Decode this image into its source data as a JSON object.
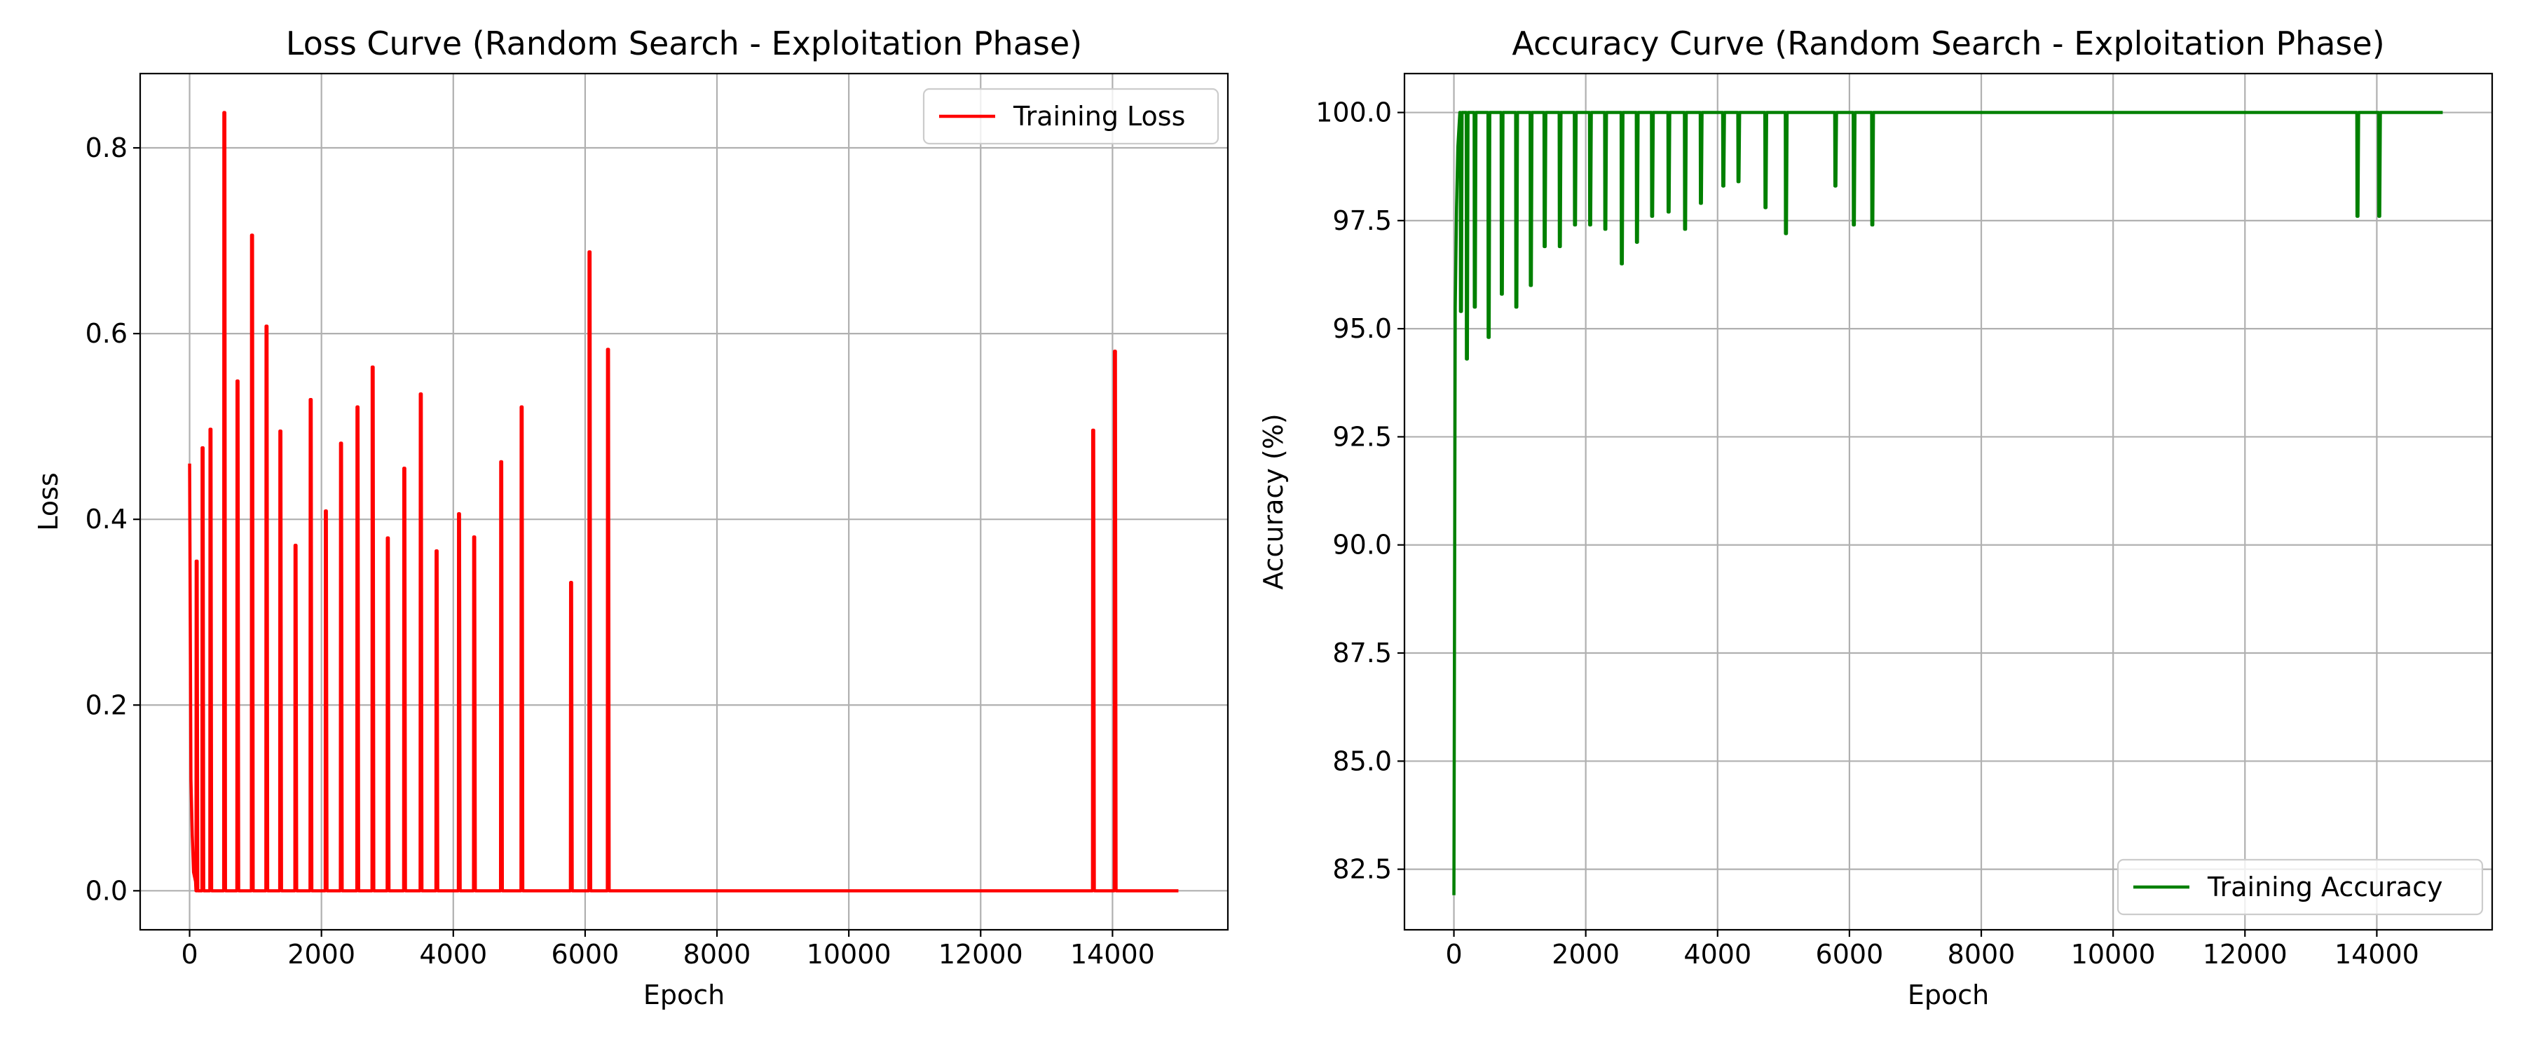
{
  "chart_data": [
    {
      "type": "line",
      "title": "Loss Curve (Random Search - Exploitation Phase)",
      "xlabel": "Epoch",
      "ylabel": "Loss",
      "xlim": [
        -750,
        15750
      ],
      "ylim": [
        -0.042,
        0.88
      ],
      "xticks": [
        0,
        2000,
        4000,
        6000,
        8000,
        10000,
        12000,
        14000
      ],
      "yticks": [
        0.0,
        0.2,
        0.4,
        0.6,
        0.8
      ],
      "yticks_decimals": 1,
      "grid": true,
      "legend_position": "upper right",
      "series": [
        {
          "name": "Training Loss",
          "color": "#ff0000",
          "baseline": 0.0,
          "x_end": 15000,
          "initial": [
            [
              0,
              0.46
            ],
            [
              20,
              0.12
            ],
            [
              40,
              0.06
            ],
            [
              60,
              0.02
            ],
            [
              90,
              0.01
            ],
            [
              110,
              0.0
            ]
          ],
          "spikes": [
            [
              100,
              0.355
            ],
            [
              190,
              0.477
            ],
            [
              310,
              0.497
            ],
            [
              520,
              0.838
            ],
            [
              720,
              0.549
            ],
            [
              940,
              0.706
            ],
            [
              1160,
              0.608
            ],
            [
              1370,
              0.495
            ],
            [
              1600,
              0.372
            ],
            [
              1830,
              0.529
            ],
            [
              2060,
              0.409
            ],
            [
              2290,
              0.482
            ],
            [
              2540,
              0.521
            ],
            [
              2770,
              0.564
            ],
            [
              3000,
              0.38
            ],
            [
              3250,
              0.455
            ],
            [
              3500,
              0.535
            ],
            [
              3740,
              0.366
            ],
            [
              4080,
              0.406
            ],
            [
              4310,
              0.381
            ],
            [
              4720,
              0.462
            ],
            [
              5030,
              0.521
            ],
            [
              5780,
              0.332
            ],
            [
              6060,
              0.688
            ],
            [
              6340,
              0.583
            ],
            [
              13700,
              0.496
            ],
            [
              14030,
              0.581
            ]
          ]
        }
      ]
    },
    {
      "type": "line",
      "title": "Accuracy Curve (Random Search - Exploitation Phase)",
      "xlabel": "Epoch",
      "ylabel": "Accuracy (%)",
      "xlim": [
        -750,
        15750
      ],
      "ylim": [
        81.1,
        100.9
      ],
      "xticks": [
        0,
        2000,
        4000,
        6000,
        8000,
        10000,
        12000,
        14000
      ],
      "yticks": [
        82.5,
        85.0,
        87.5,
        90.0,
        92.5,
        95.0,
        97.5,
        100.0
      ],
      "yticks_decimals": 1,
      "grid": true,
      "legend_position": "lower right",
      "series": [
        {
          "name": "Training Accuracy",
          "color": "#008000",
          "baseline": 100.0,
          "x_end": 15000,
          "initial": [
            [
              0,
              81.9
            ],
            [
              20,
              95.5
            ],
            [
              40,
              97.8
            ],
            [
              60,
              99.2
            ],
            [
              90,
              100.0
            ]
          ],
          "spikes": [
            [
              100,
              95.4
            ],
            [
              190,
              94.3
            ],
            [
              310,
              95.5
            ],
            [
              520,
              94.8
            ],
            [
              720,
              95.8
            ],
            [
              940,
              95.5
            ],
            [
              1160,
              96.0
            ],
            [
              1370,
              96.9
            ],
            [
              1600,
              96.9
            ],
            [
              1830,
              97.4
            ],
            [
              2060,
              97.4
            ],
            [
              2290,
              97.3
            ],
            [
              2540,
              96.5
            ],
            [
              2770,
              97.0
            ],
            [
              3000,
              97.6
            ],
            [
              3250,
              97.7
            ],
            [
              3500,
              97.3
            ],
            [
              3740,
              97.9
            ],
            [
              4080,
              98.3
            ],
            [
              4310,
              98.4
            ],
            [
              4720,
              97.8
            ],
            [
              5030,
              97.2
            ],
            [
              5780,
              98.3
            ],
            [
              6060,
              97.4
            ],
            [
              6340,
              97.4
            ],
            [
              13700,
              97.6
            ],
            [
              14030,
              97.6
            ]
          ]
        }
      ]
    }
  ]
}
